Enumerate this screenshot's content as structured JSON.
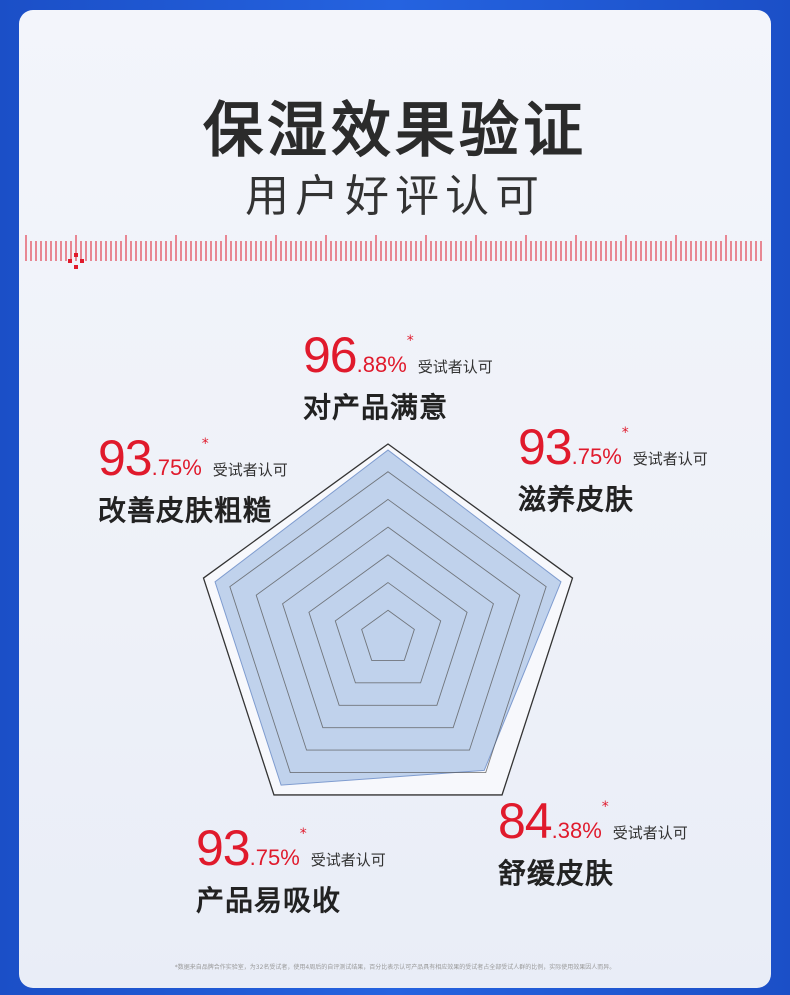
{
  "header": {
    "title": "保湿效果验证",
    "subtitle": "用户好评认可"
  },
  "labels": [
    {
      "int": "96",
      "dec": ".88%",
      "star": "*",
      "tag": "受试者认可",
      "name": "对产品满意"
    },
    {
      "int": "93",
      "dec": ".75%",
      "star": "*",
      "tag": "受试者认可",
      "name": "滋养皮肤"
    },
    {
      "int": "84",
      "dec": ".38%",
      "star": "*",
      "tag": "受试者认可",
      "name": "舒缓皮肤"
    },
    {
      "int": "93",
      "dec": ".75%",
      "star": "*",
      "tag": "受试者认可",
      "name": "产品易吸收"
    },
    {
      "int": "93",
      "dec": ".75%",
      "star": "*",
      "tag": "受试者认可",
      "name": "改善皮肤粗糙"
    }
  ],
  "chart_data": {
    "type": "radar",
    "categories": [
      "对产品满意",
      "滋养皮肤",
      "舒缓皮肤",
      "产品易吸收",
      "改善皮肤粗糙"
    ],
    "values": [
      96.88,
      93.75,
      84.38,
      93.75,
      93.75
    ],
    "range": [
      0,
      100
    ],
    "grid_rings": 7,
    "colors": {
      "fill": "#b9cdea",
      "stroke": "#7f9ccf",
      "grid": "#555555",
      "accent": "#e01a2c"
    }
  },
  "footnote": "*数据来自品牌合作实验室，为32名受试者，使用4周后的自评测试结果，百分比表示认可产品具有相应效果的受试者占全部受试人群的比例，实际使用效果因人而异。"
}
